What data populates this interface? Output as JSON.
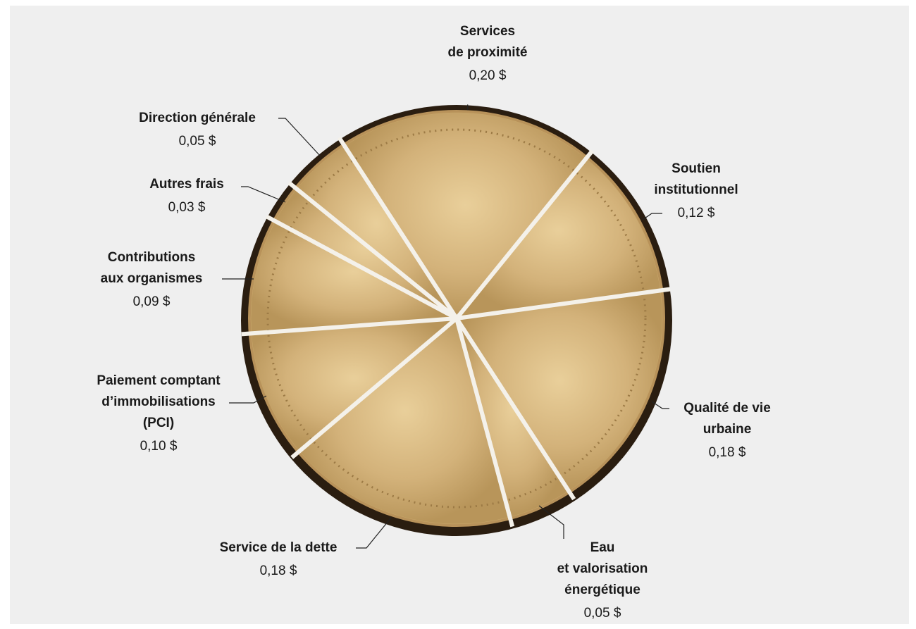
{
  "chart_data": {
    "type": "pie",
    "categories": [
      [
        "Services",
        "de proximité"
      ],
      [
        "Soutien",
        "institutionnel"
      ],
      [
        "Qualité de vie",
        "urbaine"
      ],
      [
        "Eau",
        "et valorisation",
        "énergétique"
      ],
      [
        "Service de la dette"
      ],
      [
        "Paiement comptant",
        "d’immobilisations",
        "(PCI)"
      ],
      [
        "Contributions",
        "aux organismes"
      ],
      [
        "Autres frais"
      ],
      [
        "Direction générale"
      ]
    ],
    "values": [
      0.2,
      0.12,
      0.18,
      0.05,
      0.18,
      0.1,
      0.09,
      0.03,
      0.05
    ],
    "value_labels": [
      "0,20 $",
      "0,12 $",
      "0,18 $",
      "0,05 $",
      "0,18 $",
      "0,10 $",
      "0,09 $",
      "0,03 $",
      "0,05 $"
    ],
    "color": "#c9a86a"
  }
}
